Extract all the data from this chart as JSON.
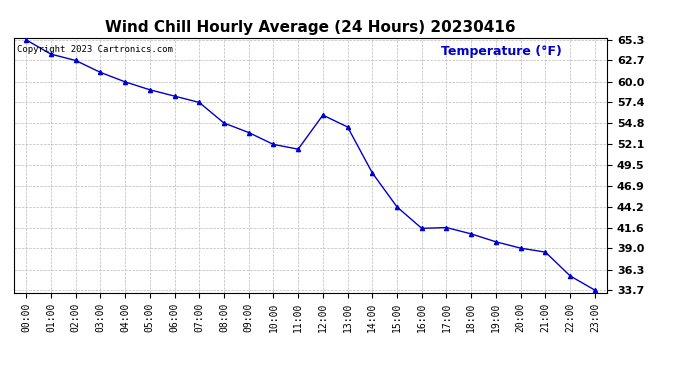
{
  "title": "Wind Chill Hourly Average (24 Hours) 20230416",
  "ylabel_text": "Temperature (°F)",
  "copyright_text": "Copyright 2023 Cartronics.com",
  "hours": [
    "00:00",
    "01:00",
    "02:00",
    "03:00",
    "04:00",
    "05:00",
    "06:00",
    "07:00",
    "08:00",
    "09:00",
    "10:00",
    "11:00",
    "12:00",
    "13:00",
    "14:00",
    "15:00",
    "16:00",
    "17:00",
    "18:00",
    "19:00",
    "20:00",
    "21:00",
    "22:00",
    "23:00"
  ],
  "values": [
    65.3,
    63.5,
    62.7,
    61.2,
    60.0,
    59.0,
    58.2,
    57.4,
    54.8,
    53.6,
    52.1,
    51.5,
    55.8,
    54.3,
    48.5,
    44.2,
    41.5,
    41.6,
    40.8,
    39.8,
    39.0,
    38.5,
    35.5,
    33.7
  ],
  "line_color": "#0000cc",
  "marker": "^",
  "marker_size": 3,
  "ylim_min": 33.7,
  "ylim_max": 65.3,
  "yticks": [
    65.3,
    62.7,
    60.0,
    57.4,
    54.8,
    52.1,
    49.5,
    46.9,
    44.2,
    41.6,
    39.0,
    36.3,
    33.7
  ],
  "bg_color": "#ffffff",
  "grid_color": "#bbbbbb",
  "title_fontsize": 11,
  "ylabel_color": "#0000cc",
  "ylabel_fontsize": 9,
  "copyright_fontsize": 6.5,
  "tick_fontsize": 8,
  "xtick_fontsize": 7
}
